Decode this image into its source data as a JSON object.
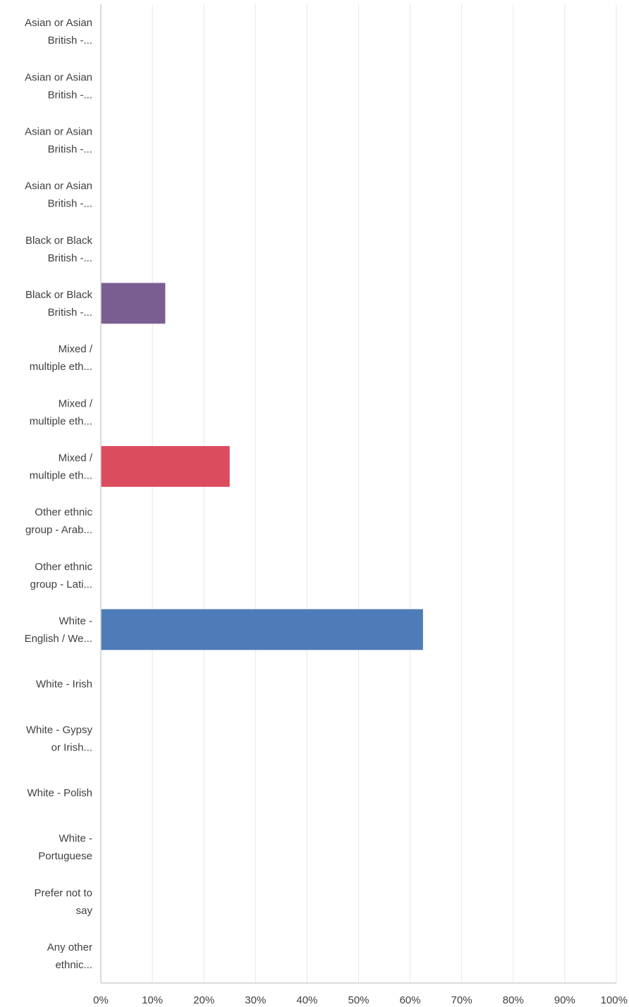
{
  "chart_data": {
    "type": "bar",
    "orientation": "horizontal",
    "categories": [
      [
        "Asian or Asian",
        "British -..."
      ],
      [
        "Asian or Asian",
        "British -..."
      ],
      [
        "Asian or Asian",
        "British -..."
      ],
      [
        "Asian or Asian",
        "British -..."
      ],
      [
        "Black or Black",
        "British -..."
      ],
      [
        "Black or Black",
        "British -..."
      ],
      [
        "Mixed /",
        "multiple eth..."
      ],
      [
        "Mixed /",
        "multiple eth..."
      ],
      [
        "Mixed /",
        "multiple eth..."
      ],
      [
        "Other ethnic",
        "group - Arab..."
      ],
      [
        "Other ethnic",
        "group - Lati..."
      ],
      [
        "White -",
        "English / We..."
      ],
      [
        "White - Irish"
      ],
      [
        "White - Gypsy",
        "or Irish..."
      ],
      [
        "White - Polish"
      ],
      [
        "White -",
        "Portuguese"
      ],
      [
        "Prefer not to",
        "say"
      ],
      [
        "Any other",
        "ethnic..."
      ]
    ],
    "values": [
      0,
      0,
      0,
      0,
      0,
      12.5,
      0,
      0,
      25,
      0,
      0,
      62.5,
      0,
      0,
      0,
      0,
      0,
      0
    ],
    "bar_colors": [
      "#4e7cb8",
      "#4e7cb8",
      "#4e7cb8",
      "#4e7cb8",
      "#4e7cb8",
      "#7b5e91",
      "#4e7cb8",
      "#4e7cb8",
      "#dc4c5f",
      "#4e7cb8",
      "#4e7cb8",
      "#4e7cb8",
      "#4e7cb8",
      "#4e7cb8",
      "#4e7cb8",
      "#4e7cb8",
      "#4e7cb8",
      "#4e7cb8"
    ],
    "x_ticks": [
      "0%",
      "10%",
      "20%",
      "30%",
      "40%",
      "50%",
      "60%",
      "70%",
      "80%",
      "90%",
      "100%"
    ],
    "xlim": [
      0,
      100
    ],
    "grid": true,
    "grid_color": "#e6e6e6",
    "axis_color": "#cfcfcf",
    "title": "",
    "xlabel": "",
    "ylabel": ""
  }
}
